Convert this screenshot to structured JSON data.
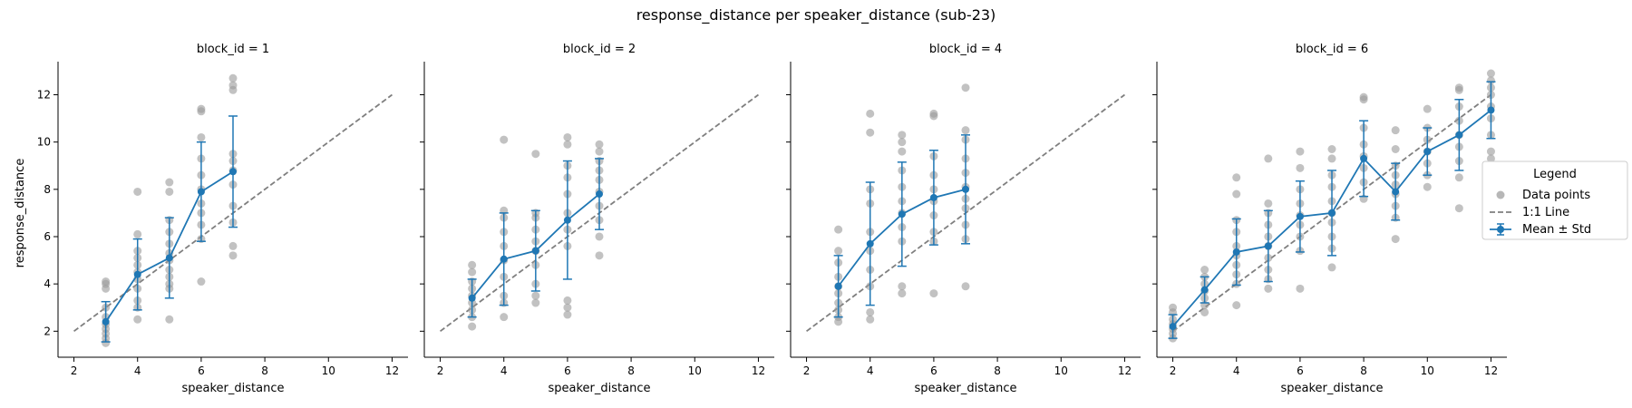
{
  "figure": {
    "title": "response_distance per speaker_distance (sub-23)",
    "xlabel": "speaker_distance",
    "ylabel": "response_distance"
  },
  "legend": {
    "title": "Legend",
    "items": [
      {
        "label": "Data points",
        "kind": "points"
      },
      {
        "label": "1:1 Line",
        "kind": "line"
      },
      {
        "label": "Mean ± Std",
        "kind": "errorbar"
      }
    ]
  },
  "colors": {
    "points": "#999999",
    "mean": "#1f77b4",
    "identity": "#7f7f7f",
    "axis": "#000000"
  },
  "chart_data": [
    {
      "type": "scatter",
      "title": "block_id = 1",
      "xlim": [
        1.5,
        12.5
      ],
      "ylim": [
        0.9,
        13.4
      ],
      "xticks": [
        2,
        4,
        6,
        8,
        10,
        12
      ],
      "yticks": [
        2,
        4,
        6,
        8,
        10,
        12
      ],
      "identity_line": {
        "x": [
          2,
          12
        ],
        "y": [
          2,
          12
        ]
      },
      "points": [
        [
          3,
          1.5
        ],
        [
          3,
          1.7
        ],
        [
          3,
          1.9
        ],
        [
          3,
          2.1
        ],
        [
          3,
          2.3
        ],
        [
          3,
          2.6
        ],
        [
          3,
          3.0
        ],
        [
          3,
          3.8
        ],
        [
          3,
          4.0
        ],
        [
          3,
          4.1
        ],
        [
          4,
          2.5
        ],
        [
          4,
          3.0
        ],
        [
          4,
          3.3
        ],
        [
          4,
          3.8
        ],
        [
          4,
          4.2
        ],
        [
          4,
          4.5
        ],
        [
          4,
          4.8
        ],
        [
          4,
          5.1
        ],
        [
          4,
          5.4
        ],
        [
          4,
          6.1
        ],
        [
          4,
          7.9
        ],
        [
          5,
          2.5
        ],
        [
          5,
          3.8
        ],
        [
          5,
          4.0
        ],
        [
          5,
          4.3
        ],
        [
          5,
          4.6
        ],
        [
          5,
          5.0
        ],
        [
          5,
          5.3
        ],
        [
          5,
          5.7
        ],
        [
          5,
          6.2
        ],
        [
          5,
          6.7
        ],
        [
          5,
          7.9
        ],
        [
          5,
          8.3
        ],
        [
          6,
          4.1
        ],
        [
          6,
          5.9
        ],
        [
          6,
          6.5
        ],
        [
          6,
          7.0
        ],
        [
          6,
          7.4
        ],
        [
          6,
          8.0
        ],
        [
          6,
          8.6
        ],
        [
          6,
          9.3
        ],
        [
          6,
          10.2
        ],
        [
          6,
          11.3
        ],
        [
          6,
          11.4
        ],
        [
          7,
          5.2
        ],
        [
          7,
          5.6
        ],
        [
          7,
          6.6
        ],
        [
          7,
          7.3
        ],
        [
          7,
          8.2
        ],
        [
          7,
          8.8
        ],
        [
          7,
          9.2
        ],
        [
          7,
          9.5
        ],
        [
          7,
          12.2
        ],
        [
          7,
          12.4
        ],
        [
          7,
          12.7
        ]
      ],
      "mean": {
        "x": [
          3,
          4,
          5,
          6,
          7
        ],
        "y": [
          2.4,
          4.4,
          5.1,
          7.9,
          8.75
        ],
        "std": [
          0.85,
          1.5,
          1.7,
          2.1,
          2.35
        ]
      }
    },
    {
      "type": "scatter",
      "title": "block_id = 2",
      "xlim": [
        1.5,
        12.5
      ],
      "ylim": [
        0.9,
        13.4
      ],
      "xticks": [
        2,
        4,
        6,
        8,
        10,
        12
      ],
      "yticks": [
        2,
        4,
        6,
        8,
        10,
        12
      ],
      "identity_line": {
        "x": [
          2,
          12
        ],
        "y": [
          2,
          12
        ]
      },
      "points": [
        [
          3,
          2.2
        ],
        [
          3,
          2.6
        ],
        [
          3,
          2.9
        ],
        [
          3,
          3.2
        ],
        [
          3,
          3.5
        ],
        [
          3,
          3.8
        ],
        [
          3,
          4.1
        ],
        [
          3,
          4.5
        ],
        [
          3,
          4.8
        ],
        [
          4,
          2.6
        ],
        [
          4,
          3.2
        ],
        [
          4,
          3.5
        ],
        [
          4,
          4.3
        ],
        [
          4,
          5.0
        ],
        [
          4,
          5.6
        ],
        [
          4,
          6.2
        ],
        [
          4,
          6.8
        ],
        [
          4,
          7.1
        ],
        [
          4,
          10.1
        ],
        [
          5,
          3.2
        ],
        [
          5,
          3.5
        ],
        [
          5,
          4.0
        ],
        [
          5,
          4.8
        ],
        [
          5,
          5.4
        ],
        [
          5,
          5.8
        ],
        [
          5,
          6.3
        ],
        [
          5,
          6.8
        ],
        [
          5,
          7.0
        ],
        [
          5,
          9.5
        ],
        [
          6,
          2.7
        ],
        [
          6,
          3.0
        ],
        [
          6,
          3.3
        ],
        [
          6,
          5.6
        ],
        [
          6,
          6.3
        ],
        [
          6,
          7.0
        ],
        [
          6,
          7.8
        ],
        [
          6,
          8.5
        ],
        [
          6,
          9.0
        ],
        [
          6,
          9.9
        ],
        [
          6,
          10.2
        ],
        [
          7,
          5.2
        ],
        [
          7,
          6.0
        ],
        [
          7,
          6.7
        ],
        [
          7,
          7.3
        ],
        [
          7,
          7.9
        ],
        [
          7,
          8.4
        ],
        [
          7,
          8.8
        ],
        [
          7,
          9.2
        ],
        [
          7,
          9.6
        ],
        [
          7,
          9.9
        ]
      ],
      "mean": {
        "x": [
          3,
          4,
          5,
          6,
          7
        ],
        "y": [
          3.4,
          5.05,
          5.4,
          6.7,
          7.8
        ],
        "std": [
          0.8,
          1.95,
          1.7,
          2.5,
          1.5
        ]
      }
    },
    {
      "type": "scatter",
      "title": "block_id = 4",
      "xlim": [
        1.5,
        12.5
      ],
      "ylim": [
        0.9,
        13.4
      ],
      "xticks": [
        2,
        4,
        6,
        8,
        10,
        12
      ],
      "yticks": [
        2,
        4,
        6,
        8,
        10,
        12
      ],
      "identity_line": {
        "x": [
          2,
          12
        ],
        "y": [
          2,
          12
        ]
      },
      "points": [
        [
          3,
          2.4
        ],
        [
          3,
          2.6
        ],
        [
          3,
          2.9
        ],
        [
          3,
          3.2
        ],
        [
          3,
          3.6
        ],
        [
          3,
          3.9
        ],
        [
          3,
          4.3
        ],
        [
          3,
          4.9
        ],
        [
          3,
          5.4
        ],
        [
          3,
          6.3
        ],
        [
          4,
          2.5
        ],
        [
          4,
          2.8
        ],
        [
          4,
          3.9
        ],
        [
          4,
          4.6
        ],
        [
          4,
          5.4
        ],
        [
          4,
          6.2
        ],
        [
          4,
          7.4
        ],
        [
          4,
          8.0
        ],
        [
          4,
          10.4
        ],
        [
          4,
          11.2
        ],
        [
          5,
          3.6
        ],
        [
          5,
          3.9
        ],
        [
          5,
          5.8
        ],
        [
          5,
          6.4
        ],
        [
          5,
          7.0
        ],
        [
          5,
          7.5
        ],
        [
          5,
          8.1
        ],
        [
          5,
          8.8
        ],
        [
          5,
          9.6
        ],
        [
          5,
          10.0
        ],
        [
          5,
          10.3
        ],
        [
          6,
          3.6
        ],
        [
          6,
          5.8
        ],
        [
          6,
          6.2
        ],
        [
          6,
          6.9
        ],
        [
          6,
          7.5
        ],
        [
          6,
          8.0
        ],
        [
          6,
          8.6
        ],
        [
          6,
          9.4
        ],
        [
          6,
          11.1
        ],
        [
          6,
          11.2
        ],
        [
          7,
          3.9
        ],
        [
          7,
          5.9
        ],
        [
          7,
          6.5
        ],
        [
          7,
          7.2
        ],
        [
          7,
          7.6
        ],
        [
          7,
          8.1
        ],
        [
          7,
          8.7
        ],
        [
          7,
          9.3
        ],
        [
          7,
          10.1
        ],
        [
          7,
          10.5
        ],
        [
          7,
          12.3
        ]
      ],
      "mean": {
        "x": [
          3,
          4,
          5,
          6,
          7
        ],
        "y": [
          3.9,
          5.7,
          6.95,
          7.65,
          8.0
        ],
        "std": [
          1.3,
          2.6,
          2.2,
          2.0,
          2.3
        ]
      }
    },
    {
      "type": "scatter",
      "title": "block_id = 6",
      "xlim": [
        1.5,
        12.5
      ],
      "ylim": [
        0.9,
        13.4
      ],
      "xticks": [
        2,
        4,
        6,
        8,
        10,
        12
      ],
      "yticks": [
        2,
        4,
        6,
        8,
        10,
        12
      ],
      "identity_line": {
        "x": [
          2,
          12
        ],
        "y": [
          2,
          12
        ]
      },
      "points": [
        [
          2,
          1.7
        ],
        [
          2,
          1.9
        ],
        [
          2,
          2.1
        ],
        [
          2,
          2.3
        ],
        [
          2,
          2.5
        ],
        [
          2,
          2.8
        ],
        [
          2,
          3.0
        ],
        [
          3,
          2.8
        ],
        [
          3,
          3.1
        ],
        [
          3,
          3.4
        ],
        [
          3,
          3.7
        ],
        [
          3,
          4.0
        ],
        [
          3,
          4.3
        ],
        [
          3,
          4.6
        ],
        [
          4,
          3.1
        ],
        [
          4,
          4.0
        ],
        [
          4,
          4.4
        ],
        [
          4,
          4.8
        ],
        [
          4,
          5.2
        ],
        [
          4,
          5.6
        ],
        [
          4,
          6.2
        ],
        [
          4,
          6.7
        ],
        [
          4,
          7.8
        ],
        [
          4,
          8.5
        ],
        [
          5,
          3.8
        ],
        [
          5,
          4.2
        ],
        [
          5,
          4.6
        ],
        [
          5,
          5.1
        ],
        [
          5,
          5.6
        ],
        [
          5,
          6.0
        ],
        [
          5,
          6.5
        ],
        [
          5,
          7.0
        ],
        [
          5,
          7.4
        ],
        [
          5,
          9.3
        ],
        [
          6,
          3.8
        ],
        [
          6,
          5.4
        ],
        [
          6,
          6.0
        ],
        [
          6,
          6.5
        ],
        [
          6,
          6.9
        ],
        [
          6,
          7.4
        ],
        [
          6,
          8.0
        ],
        [
          6,
          8.9
        ],
        [
          6,
          9.6
        ],
        [
          7,
          4.7
        ],
        [
          7,
          5.5
        ],
        [
          7,
          6.0
        ],
        [
          7,
          6.6
        ],
        [
          7,
          7.0
        ],
        [
          7,
          7.5
        ],
        [
          7,
          8.1
        ],
        [
          7,
          8.6
        ],
        [
          7,
          9.3
        ],
        [
          7,
          9.7
        ],
        [
          8,
          7.6
        ],
        [
          8,
          8.3
        ],
        [
          8,
          8.9
        ],
        [
          8,
          9.4
        ],
        [
          8,
          9.9
        ],
        [
          8,
          10.6
        ],
        [
          8,
          11.8
        ],
        [
          8,
          11.9
        ],
        [
          9,
          5.9
        ],
        [
          9,
          6.8
        ],
        [
          9,
          7.3
        ],
        [
          9,
          7.8
        ],
        [
          9,
          8.2
        ],
        [
          9,
          8.6
        ],
        [
          9,
          9.0
        ],
        [
          9,
          9.7
        ],
        [
          9,
          10.5
        ],
        [
          10,
          8.1
        ],
        [
          10,
          8.6
        ],
        [
          10,
          9.1
        ],
        [
          10,
          9.6
        ],
        [
          10,
          10.1
        ],
        [
          10,
          10.6
        ],
        [
          10,
          11.4
        ],
        [
          11,
          7.2
        ],
        [
          11,
          8.5
        ],
        [
          11,
          9.2
        ],
        [
          11,
          9.8
        ],
        [
          11,
          10.3
        ],
        [
          11,
          10.9
        ],
        [
          11,
          11.5
        ],
        [
          11,
          12.2
        ],
        [
          11,
          12.3
        ],
        [
          12,
          9.3
        ],
        [
          12,
          9.6
        ],
        [
          12,
          10.3
        ],
        [
          12,
          11.0
        ],
        [
          12,
          11.5
        ],
        [
          12,
          12.0
        ],
        [
          12,
          12.3
        ],
        [
          12,
          12.6
        ],
        [
          12,
          12.9
        ]
      ],
      "mean": {
        "x": [
          2,
          3,
          4,
          5,
          6,
          7,
          8,
          9,
          10,
          11,
          12
        ],
        "y": [
          2.2,
          3.75,
          5.35,
          5.6,
          6.85,
          7.0,
          9.3,
          7.9,
          9.6,
          10.3,
          11.35
        ],
        "std": [
          0.5,
          0.55,
          1.4,
          1.5,
          1.5,
          1.8,
          1.6,
          1.2,
          1.0,
          1.5,
          1.2
        ]
      }
    }
  ]
}
